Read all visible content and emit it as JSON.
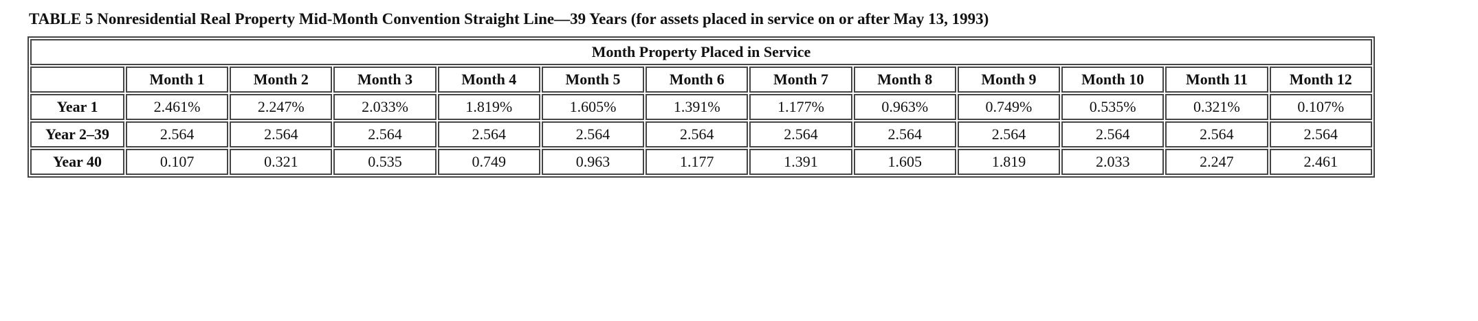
{
  "table": {
    "title": "TABLE 5 Nonresidential Real Property Mid-Month Convention Straight Line—39 Years (for assets placed in service on or after May 13, 1993)",
    "group_header": "Month Property Placed in Service",
    "corner_header": "",
    "columns": [
      "Month 1",
      "Month 2",
      "Month 3",
      "Month 4",
      "Month 5",
      "Month 6",
      "Month 7",
      "Month 8",
      "Month 9",
      "Month 10",
      "Month 11",
      "Month 12"
    ],
    "rows": [
      {
        "label": "Year 1",
        "cells": [
          "2.461%",
          "2.247%",
          "2.033%",
          "1.819%",
          "1.605%",
          "1.391%",
          "1.177%",
          "0.963%",
          "0.749%",
          "0.535%",
          "0.321%",
          "0.107%"
        ]
      },
      {
        "label": "Year 2–39",
        "cells": [
          "2.564",
          "2.564",
          "2.564",
          "2.564",
          "2.564",
          "2.564",
          "2.564",
          "2.564",
          "2.564",
          "2.564",
          "2.564",
          "2.564"
        ]
      },
      {
        "label": "Year 40",
        "cells": [
          "0.107",
          "0.321",
          "0.535",
          "0.749",
          "0.963",
          "1.177",
          "1.391",
          "1.605",
          "1.819",
          "2.033",
          "2.247",
          "2.461"
        ]
      }
    ]
  }
}
